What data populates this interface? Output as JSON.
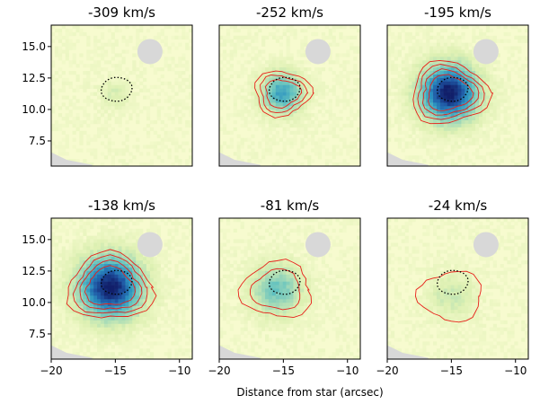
{
  "figure": {
    "xlabel": "Distance from star (arcsec)"
  },
  "chart_data": {
    "type": "heatmap",
    "xlabel": "Distance from star (arcsec)",
    "ylabel": "",
    "xlim": [
      -20,
      -9
    ],
    "ylim": [
      5.5,
      16.7
    ],
    "xticks": [
      -20,
      -15,
      -10
    ],
    "xtick_labels": [
      "−20",
      "−15",
      "−10"
    ],
    "yticks": [
      7.5,
      10.0,
      12.5,
      15.0
    ],
    "ytick_labels": [
      "7.5",
      "10.0",
      "12.5",
      "15.0"
    ],
    "grid": false,
    "colormap": [
      "#f7fbcf",
      "#ddf0b2",
      "#a6dbb7",
      "#5fc0c0",
      "#2c91c0",
      "#1f58a5",
      "#111f6a"
    ],
    "contour_color": "#e8201a",
    "reference_contour_color": "#000000",
    "mask_color": "#d8d8d8",
    "panels": [
      {
        "title": "-309 km/s",
        "velocity": -309,
        "peak_intensity": 0.15,
        "emission_center": [
          -15,
          11.2
        ],
        "emission_radius": 1.2,
        "contour_levels": 0,
        "reference_contour": {
          "center": [
            -14.9,
            11.6
          ],
          "rx": 1.2,
          "ry": 0.95
        }
      },
      {
        "title": "-252 km/s",
        "velocity": -252,
        "peak_intensity": 0.6,
        "emission_center": [
          -15.1,
          11.3
        ],
        "emission_radius": 1.6,
        "contour_levels": 3,
        "reference_contour": {
          "center": [
            -14.9,
            11.6
          ],
          "rx": 1.2,
          "ry": 0.95
        }
      },
      {
        "title": "-195 km/s",
        "velocity": -195,
        "peak_intensity": 1.0,
        "emission_center": [
          -15.2,
          11.3
        ],
        "emission_radius": 2.2,
        "contour_levels": 4,
        "reference_contour": {
          "center": [
            -14.9,
            11.6
          ],
          "rx": 1.2,
          "ry": 0.95
        }
      },
      {
        "title": "-138 km/s",
        "velocity": -138,
        "peak_intensity": 1.0,
        "emission_center": [
          -15.4,
          11.2
        ],
        "emission_radius": 2.4,
        "contour_levels": 4,
        "reference_contour": {
          "center": [
            -14.9,
            11.6
          ],
          "rx": 1.2,
          "ry": 0.95
        }
      },
      {
        "title": "-81 km/s",
        "velocity": -81,
        "peak_intensity": 0.45,
        "emission_center": [
          -15.5,
          11.0
        ],
        "emission_radius": 2.0,
        "contour_levels": 2,
        "reference_contour": {
          "center": [
            -14.9,
            11.6
          ],
          "rx": 1.2,
          "ry": 0.95
        }
      },
      {
        "title": "-24 km/s",
        "velocity": -24,
        "peak_intensity": 0.2,
        "emission_center": [
          -15.0,
          10.5
        ],
        "emission_radius": 1.8,
        "contour_levels": 1,
        "reference_contour": {
          "center": [
            -14.9,
            11.6
          ],
          "rx": 1.2,
          "ry": 0.95
        }
      }
    ]
  }
}
